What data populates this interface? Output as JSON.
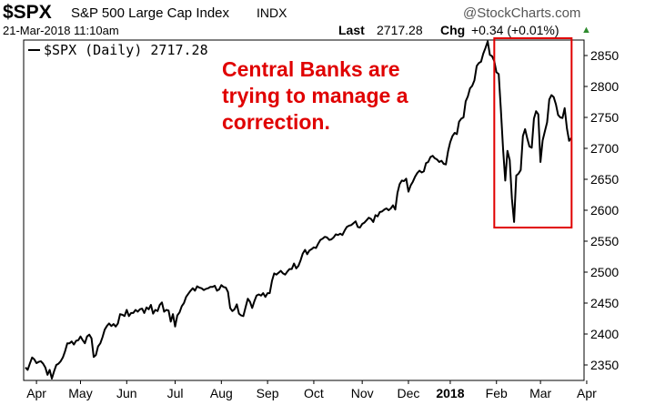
{
  "header": {
    "ticker": "$SPX",
    "full_name": "S&P 500 Large Cap Index",
    "exchange": "INDX",
    "brand": "@StockCharts.com",
    "datetime": "21-Mar-2018 11:10am",
    "last_label": "Last",
    "last_value": "2717.28",
    "chg_label": "Chg",
    "chg_value": "+0.34 (+0.01%)",
    "chg_arrow": "▲"
  },
  "annotation": {
    "lines": [
      "Central Banks are",
      "trying to manage a",
      "correction."
    ],
    "color": "#e00000"
  },
  "chart_data": {
    "type": "line",
    "legend": "$SPX (Daily) 2717.28",
    "legend_placement": "top-left",
    "ylim": [
      2325,
      2875
    ],
    "y_ticks": [
      2350,
      2400,
      2450,
      2500,
      2550,
      2600,
      2650,
      2700,
      2750,
      2800,
      2850
    ],
    "x_tick_labels": [
      "Apr",
      "May",
      "Jun",
      "Jul",
      "Aug",
      "Sep",
      "Oct",
      "Nov",
      "Dec",
      "2018",
      "Feb",
      "Mar",
      "Apr"
    ],
    "x_ticks_index": [
      5,
      25,
      46,
      68,
      89,
      110,
      131,
      153,
      174,
      193,
      214,
      234,
      255
    ],
    "series": [
      {
        "name": "$SPX",
        "color": "#000000",
        "values": [
          2346,
          2342,
          2352,
          2362,
          2359,
          2353,
          2355,
          2356,
          2352,
          2346,
          2334,
          2342,
          2328,
          2340,
          2350,
          2352,
          2356,
          2362,
          2372,
          2385,
          2385,
          2388,
          2383,
          2389,
          2390,
          2396,
          2390,
          2385,
          2396,
          2399,
          2393,
          2363,
          2366,
          2380,
          2385,
          2395,
          2407,
          2413,
          2417,
          2413,
          2416,
          2412,
          2417,
          2432,
          2431,
          2429,
          2439,
          2429,
          2434,
          2434,
          2439,
          2436,
          2440,
          2441,
          2434,
          2443,
          2440,
          2447,
          2433,
          2439,
          2437,
          2447,
          2451,
          2436,
          2439,
          2438,
          2420,
          2432,
          2412,
          2430,
          2435,
          2445,
          2450,
          2460,
          2465,
          2470,
          2474,
          2470,
          2477,
          2475,
          2474,
          2471,
          2473,
          2474,
          2476,
          2476,
          2478,
          2470,
          2472,
          2479,
          2476,
          2475,
          2468,
          2442,
          2437,
          2440,
          2448,
          2433,
          2430,
          2429,
          2443,
          2457,
          2452,
          2442,
          2453,
          2462,
          2464,
          2462,
          2466,
          2460,
          2466,
          2466,
          2486,
          2498,
          2496,
          2499,
          2502,
          2498,
          2496,
          2501,
          2505,
          2505,
          2514,
          2506,
          2510,
          2519,
          2530,
          2536,
          2529,
          2535,
          2537,
          2540,
          2539,
          2546,
          2552,
          2554,
          2557,
          2556,
          2552,
          2553,
          2556,
          2561,
          2560,
          2562,
          2560,
          2567,
          2573,
          2575,
          2576,
          2579,
          2582,
          2573,
          2572,
          2578,
          2580,
          2584,
          2588,
          2586,
          2581,
          2592,
          2590,
          2597,
          2598,
          2601,
          2603,
          2600,
          2603,
          2608,
          2601,
          2628,
          2642,
          2648,
          2647,
          2651,
          2630,
          2640,
          2646,
          2654,
          2660,
          2664,
          2661,
          2663,
          2676,
          2678,
          2686,
          2688,
          2684,
          2682,
          2678,
          2680,
          2675,
          2674,
          2695,
          2710,
          2720,
          2725,
          2723,
          2743,
          2748,
          2750,
          2776,
          2784,
          2797,
          2801,
          2810,
          2833,
          2838,
          2840,
          2853,
          2862,
          2873,
          2851,
          2849,
          2841,
          2823,
          2820,
          2762,
          2699,
          2648,
          2696,
          2681,
          2619,
          2581,
          2656,
          2659,
          2665,
          2720,
          2731,
          2716,
          2703,
          2701,
          2748,
          2760,
          2755,
          2678,
          2713,
          2728,
          2742,
          2779,
          2786,
          2783,
          2771,
          2754,
          2750,
          2749,
          2765,
          2732,
          2712,
          2717
        ]
      }
    ],
    "highlight_box": {
      "x_index_start": 213,
      "x_index_end": 244,
      "y_range": [
        2572,
        2880
      ],
      "color": "#e00000"
    }
  }
}
